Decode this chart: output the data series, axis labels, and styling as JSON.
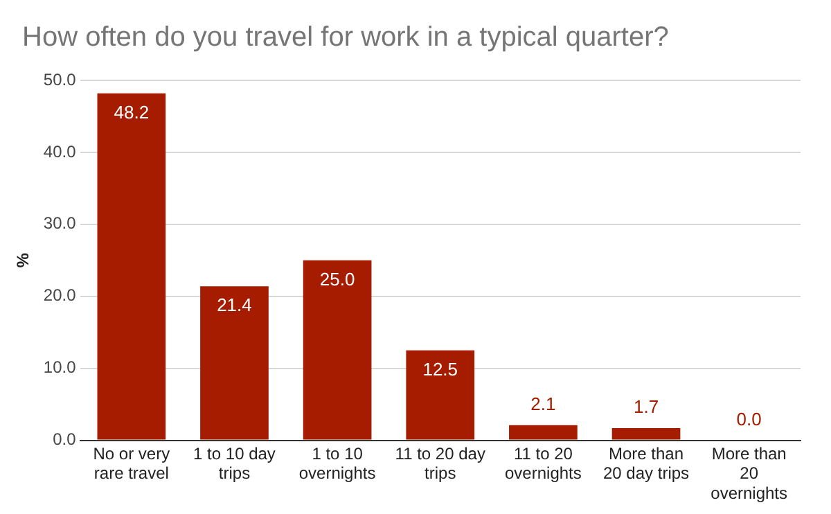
{
  "chart_data": {
    "type": "bar",
    "title": "How often do you travel for work in a typical quarter?",
    "ylabel": "%",
    "categories": [
      "No or very rare travel",
      "1 to 10 day trips",
      "1 to 10 overnights",
      "11 to 20 day trips",
      "11 to 20 overnights",
      "More than 20 day trips",
      "More than 20 overnights"
    ],
    "values": [
      48.2,
      21.4,
      25.0,
      12.5,
      2.1,
      1.7,
      0.0
    ],
    "value_labels": [
      "48.2",
      "21.4",
      "25.0",
      "12.5",
      "2.1",
      "1.7",
      "0.0"
    ],
    "color": "#a61c00",
    "ylim": [
      0,
      50
    ],
    "yticks": [
      {
        "value": 0,
        "label": "0.0"
      },
      {
        "value": 10,
        "label": "10.0"
      },
      {
        "value": 20,
        "label": "20.0"
      },
      {
        "value": 30,
        "label": "30.0"
      },
      {
        "value": 40,
        "label": "40.0"
      },
      {
        "value": 50,
        "label": "50.0"
      }
    ],
    "grid": "y",
    "legend": false
  }
}
